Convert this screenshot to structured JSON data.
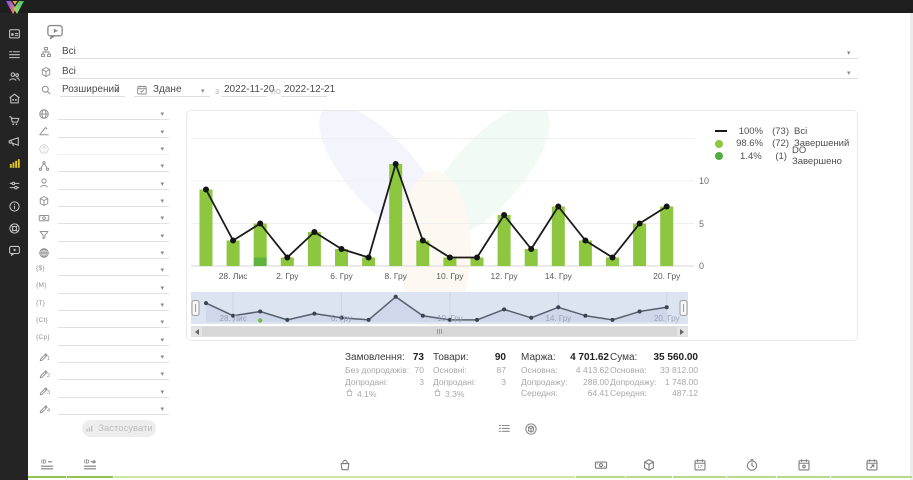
{
  "ui": {
    "caret": "▾"
  },
  "sidebar": {
    "items": [
      {
        "name": "dashboard",
        "icon": "dashboard",
        "active": false
      },
      {
        "name": "orders",
        "icon": "orders",
        "active": false
      },
      {
        "name": "clients",
        "icon": "clients",
        "active": false
      },
      {
        "name": "warehouse",
        "icon": "warehouse",
        "active": false
      },
      {
        "name": "cart",
        "icon": "cart",
        "active": false
      },
      {
        "name": "marketing",
        "icon": "marketing",
        "active": false
      },
      {
        "name": "analytics",
        "icon": "analytics",
        "active": true
      },
      {
        "name": "settings",
        "icon": "settings",
        "active": false
      },
      {
        "name": "info",
        "icon": "info",
        "active": false
      },
      {
        "name": "support",
        "icon": "support",
        "active": false
      },
      {
        "name": "video",
        "icon": "video",
        "active": false
      }
    ]
  },
  "filters": {
    "group_filter": {
      "value": "Всі"
    },
    "product_filter": {
      "value": "Всі"
    },
    "search_mode": {
      "value": "Розширений"
    },
    "date_type": {
      "value": "Здане"
    },
    "from_label": "з",
    "date_from": "2022-11-20",
    "to_label": "по",
    "date_to": "2022-12-21"
  },
  "left_panel": {
    "apply_label": "Застосувати",
    "rows": [
      {
        "icon": "globe"
      },
      {
        "icon": "ruler"
      },
      {
        "icon": "help",
        "disabled": true
      },
      {
        "icon": "structure"
      },
      {
        "icon": "person"
      },
      {
        "icon": "package"
      },
      {
        "icon": "money"
      },
      {
        "icon": "funnel"
      },
      {
        "icon": "web"
      },
      {
        "icon": "brace",
        "text": "{$}"
      },
      {
        "icon": "brace",
        "text": "{M}"
      },
      {
        "icon": "brace",
        "text": "{T}"
      },
      {
        "icon": "brace",
        "text": "{Ct}"
      },
      {
        "icon": "brace",
        "text": "{Cp}"
      },
      {
        "icon": "pencil",
        "sub": "1"
      },
      {
        "icon": "pencil",
        "sub": "2"
      },
      {
        "icon": "pencil",
        "sub": "3"
      },
      {
        "icon": "pencil",
        "sub": "4"
      }
    ]
  },
  "chart_data": {
    "type": "bar+line",
    "yticks": [
      0,
      5,
      10
    ],
    "ylim": [
      0,
      15
    ],
    "x_ticks": [
      {
        "index": 1,
        "label": "28. Лис"
      },
      {
        "index": 3,
        "label": "2. Гру"
      },
      {
        "index": 5,
        "label": "6. Гру"
      },
      {
        "index": 7,
        "label": "8. Гру"
      },
      {
        "index": 9,
        "label": "10. Гру"
      },
      {
        "index": 11,
        "label": "12. Гру"
      },
      {
        "index": 13,
        "label": "14. Гру"
      },
      {
        "index": 17,
        "label": "20. Гру"
      }
    ],
    "series": [
      {
        "name": "Всі",
        "type": "line",
        "color": "#1a1a1a",
        "values": [
          9,
          3,
          5,
          1,
          4,
          2,
          1,
          12,
          3,
          1,
          1,
          6,
          2,
          7,
          3,
          1,
          5,
          7
        ]
      },
      {
        "name": "Завершений",
        "type": "bar",
        "color": "#8dc63f",
        "values": [
          9,
          3,
          4,
          1,
          4,
          2,
          1,
          12,
          3,
          1,
          1,
          6,
          2,
          7,
          3,
          1,
          5,
          7
        ]
      },
      {
        "name": "DO Завершено",
        "type": "bar",
        "color": "#5fb23c",
        "values": [
          0,
          0,
          1,
          0,
          0,
          0,
          0,
          0,
          0,
          0,
          0,
          0,
          0,
          0,
          0,
          0,
          0,
          0
        ]
      }
    ],
    "navigator": {
      "bg": "#dce3f1",
      "line_color": "#55616e",
      "area_color": "#c5cfe3",
      "dot_color": "#39424d",
      "green_dot_color": "#6abf45",
      "ticks": [
        {
          "index": 1,
          "label": "28. Лис"
        },
        {
          "index": 5,
          "label": "6. Гру"
        },
        {
          "index": 9,
          "label": "10. Гру"
        },
        {
          "index": 13,
          "label": "14. Гру"
        },
        {
          "index": 17,
          "label": "20. Гру"
        }
      ]
    }
  },
  "legend": {
    "items": [
      {
        "swatch": "line",
        "color": "#1a1a1a",
        "pct": "100%",
        "count": "(73)",
        "label": "Всі"
      },
      {
        "swatch": "dot",
        "color": "#8dc63f",
        "pct": "98.6%",
        "count": "(72)",
        "label": "Завершений"
      },
      {
        "swatch": "dot",
        "color": "#4fae3d",
        "pct": "1.4%",
        "count": "(1)",
        "label": "DO Завершено"
      }
    ]
  },
  "stats": {
    "columns": [
      {
        "title": "Замовлення:",
        "value": "73",
        "rows": [
          {
            "label": "Без допродажів:",
            "value": "70"
          },
          {
            "label": "Допродані:",
            "value": "3"
          }
        ],
        "pct": "4.1%",
        "pct_icon": "bag"
      },
      {
        "title": "Товари:",
        "value": "90",
        "rows": [
          {
            "label": "Основні:",
            "value": "87"
          },
          {
            "label": "Допродані:",
            "value": "3"
          }
        ],
        "pct": "3.3%",
        "pct_icon": "bag"
      },
      {
        "title": "Маржа:",
        "value": "4 701.62",
        "rows": [
          {
            "label": "Основна:",
            "value": "4 413.62"
          },
          {
            "label": "Допродажу:",
            "value": "288.00"
          },
          {
            "label": "Середня:",
            "value": "64.41"
          }
        ]
      },
      {
        "title": "Сума:",
        "value": "35 560.00",
        "rows": [
          {
            "label": "Основна:",
            "value": "33 812.00"
          },
          {
            "label": "Допродажу:",
            "value": "1 748.00"
          },
          {
            "label": "Середня:",
            "value": "487.12"
          }
        ]
      }
    ]
  },
  "view_toggles": [
    {
      "name": "orders-list-view",
      "icon": "list"
    },
    {
      "name": "products-view",
      "icon": "package-circle"
    }
  ],
  "bottom_table": {
    "columns": [
      {
        "name": "order-id-column",
        "icon": "id-list"
      },
      {
        "name": "external-id-column",
        "icon": "id-dash"
      },
      {
        "name": "products-column",
        "icon": "bag"
      },
      {
        "name": "payment-column",
        "icon": "money"
      },
      {
        "name": "package-column",
        "icon": "package"
      },
      {
        "name": "date-column",
        "icon": "calendar-num"
      },
      {
        "name": "time-column",
        "icon": "clock"
      },
      {
        "name": "date-alt-column",
        "icon": "calendar-dot"
      },
      {
        "name": "date-export-column",
        "icon": "calendar-arrow"
      }
    ]
  }
}
